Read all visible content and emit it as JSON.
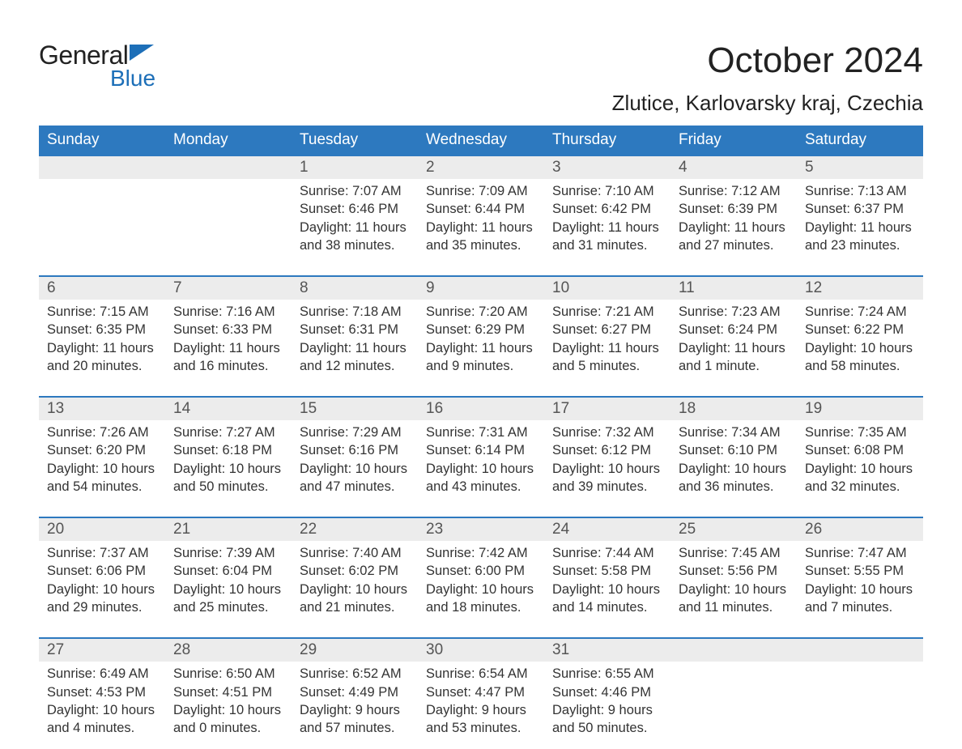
{
  "logo": {
    "text_general": "General",
    "text_blue": "Blue",
    "color_blue": "#1d6fb8"
  },
  "title": "October 2024",
  "location": "Zlutice, Karlovarsky kraj, Czechia",
  "theme": {
    "header_bg": "#2d79bf",
    "header_fg": "#ffffff",
    "daynum_bg": "#ececec",
    "daynum_fg": "#555555",
    "body_text": "#333333",
    "row_border": "#2d79bf",
    "page_bg": "#ffffff"
  },
  "day_headers": [
    "Sunday",
    "Monday",
    "Tuesday",
    "Wednesday",
    "Thursday",
    "Friday",
    "Saturday"
  ],
  "weeks": [
    {
      "days": [
        null,
        null,
        {
          "n": "1",
          "sunrise": "7:07 AM",
          "sunset": "6:46 PM",
          "daylight": "11 hours and 38 minutes."
        },
        {
          "n": "2",
          "sunrise": "7:09 AM",
          "sunset": "6:44 PM",
          "daylight": "11 hours and 35 minutes."
        },
        {
          "n": "3",
          "sunrise": "7:10 AM",
          "sunset": "6:42 PM",
          "daylight": "11 hours and 31 minutes."
        },
        {
          "n": "4",
          "sunrise": "7:12 AM",
          "sunset": "6:39 PM",
          "daylight": "11 hours and 27 minutes."
        },
        {
          "n": "5",
          "sunrise": "7:13 AM",
          "sunset": "6:37 PM",
          "daylight": "11 hours and 23 minutes."
        }
      ]
    },
    {
      "days": [
        {
          "n": "6",
          "sunrise": "7:15 AM",
          "sunset": "6:35 PM",
          "daylight": "11 hours and 20 minutes."
        },
        {
          "n": "7",
          "sunrise": "7:16 AM",
          "sunset": "6:33 PM",
          "daylight": "11 hours and 16 minutes."
        },
        {
          "n": "8",
          "sunrise": "7:18 AM",
          "sunset": "6:31 PM",
          "daylight": "11 hours and 12 minutes."
        },
        {
          "n": "9",
          "sunrise": "7:20 AM",
          "sunset": "6:29 PM",
          "daylight": "11 hours and 9 minutes."
        },
        {
          "n": "10",
          "sunrise": "7:21 AM",
          "sunset": "6:27 PM",
          "daylight": "11 hours and 5 minutes."
        },
        {
          "n": "11",
          "sunrise": "7:23 AM",
          "sunset": "6:24 PM",
          "daylight": "11 hours and 1 minute."
        },
        {
          "n": "12",
          "sunrise": "7:24 AM",
          "sunset": "6:22 PM",
          "daylight": "10 hours and 58 minutes."
        }
      ]
    },
    {
      "days": [
        {
          "n": "13",
          "sunrise": "7:26 AM",
          "sunset": "6:20 PM",
          "daylight": "10 hours and 54 minutes."
        },
        {
          "n": "14",
          "sunrise": "7:27 AM",
          "sunset": "6:18 PM",
          "daylight": "10 hours and 50 minutes."
        },
        {
          "n": "15",
          "sunrise": "7:29 AM",
          "sunset": "6:16 PM",
          "daylight": "10 hours and 47 minutes."
        },
        {
          "n": "16",
          "sunrise": "7:31 AM",
          "sunset": "6:14 PM",
          "daylight": "10 hours and 43 minutes."
        },
        {
          "n": "17",
          "sunrise": "7:32 AM",
          "sunset": "6:12 PM",
          "daylight": "10 hours and 39 minutes."
        },
        {
          "n": "18",
          "sunrise": "7:34 AM",
          "sunset": "6:10 PM",
          "daylight": "10 hours and 36 minutes."
        },
        {
          "n": "19",
          "sunrise": "7:35 AM",
          "sunset": "6:08 PM",
          "daylight": "10 hours and 32 minutes."
        }
      ]
    },
    {
      "days": [
        {
          "n": "20",
          "sunrise": "7:37 AM",
          "sunset": "6:06 PM",
          "daylight": "10 hours and 29 minutes."
        },
        {
          "n": "21",
          "sunrise": "7:39 AM",
          "sunset": "6:04 PM",
          "daylight": "10 hours and 25 minutes."
        },
        {
          "n": "22",
          "sunrise": "7:40 AM",
          "sunset": "6:02 PM",
          "daylight": "10 hours and 21 minutes."
        },
        {
          "n": "23",
          "sunrise": "7:42 AM",
          "sunset": "6:00 PM",
          "daylight": "10 hours and 18 minutes."
        },
        {
          "n": "24",
          "sunrise": "7:44 AM",
          "sunset": "5:58 PM",
          "daylight": "10 hours and 14 minutes."
        },
        {
          "n": "25",
          "sunrise": "7:45 AM",
          "sunset": "5:56 PM",
          "daylight": "10 hours and 11 minutes."
        },
        {
          "n": "26",
          "sunrise": "7:47 AM",
          "sunset": "5:55 PM",
          "daylight": "10 hours and 7 minutes."
        }
      ]
    },
    {
      "days": [
        {
          "n": "27",
          "sunrise": "6:49 AM",
          "sunset": "4:53 PM",
          "daylight": "10 hours and 4 minutes."
        },
        {
          "n": "28",
          "sunrise": "6:50 AM",
          "sunset": "4:51 PM",
          "daylight": "10 hours and 0 minutes."
        },
        {
          "n": "29",
          "sunrise": "6:52 AM",
          "sunset": "4:49 PM",
          "daylight": "9 hours and 57 minutes."
        },
        {
          "n": "30",
          "sunrise": "6:54 AM",
          "sunset": "4:47 PM",
          "daylight": "9 hours and 53 minutes."
        },
        {
          "n": "31",
          "sunrise": "6:55 AM",
          "sunset": "4:46 PM",
          "daylight": "9 hours and 50 minutes."
        },
        null,
        null
      ]
    }
  ],
  "labels": {
    "sunrise": "Sunrise: ",
    "sunset": "Sunset: ",
    "daylight": "Daylight: "
  }
}
